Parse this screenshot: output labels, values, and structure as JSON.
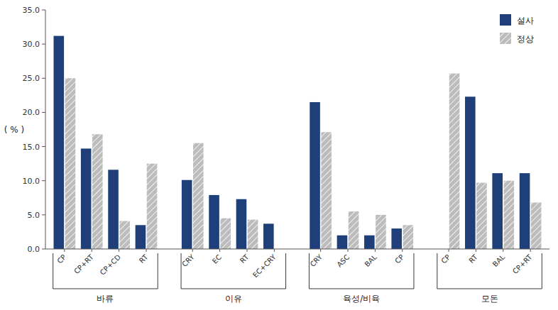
{
  "chart_data": {
    "type": "bar",
    "y_label": "( % )",
    "groups": [
      {
        "label": "바류",
        "categories": [
          "CP",
          "CP+RT",
          "CP+CD",
          "RT"
        ]
      },
      {
        "label": "이유",
        "categories": [
          "CRY",
          "EC",
          "RT",
          "EC+CRY"
        ]
      },
      {
        "label": "육성/비육",
        "categories": [
          "CRY",
          "ASC",
          "BAL",
          "CP"
        ]
      },
      {
        "label": "모돈",
        "categories": [
          "CP",
          "RT",
          "BAL",
          "CP+RT"
        ]
      }
    ],
    "series": [
      {
        "name": "설사",
        "color": "#1F3F7A",
        "values": [
          31.2,
          14.7,
          11.6,
          3.5,
          10.1,
          7.9,
          7.3,
          3.7,
          21.5,
          2.0,
          2.0,
          3.0,
          0.0,
          22.3,
          11.1,
          11.1
        ]
      },
      {
        "name": "정상",
        "color": "#BCBCBC",
        "values": [
          25.0,
          16.8,
          4.1,
          12.5,
          15.5,
          4.5,
          4.3,
          0.0,
          17.1,
          5.5,
          5.0,
          3.5,
          25.7,
          9.7,
          10.0,
          6.8
        ]
      }
    ],
    "ylim": [
      0.0,
      35.0
    ],
    "yticks": [
      {
        "value": 0.0,
        "label": "0.0"
      },
      {
        "value": 5.0,
        "label": "5.0"
      },
      {
        "value": 10.0,
        "label": "10.0"
      },
      {
        "value": 15.0,
        "label": "15.0"
      },
      {
        "value": 20.0,
        "label": "20.0"
      },
      {
        "value": 25.0,
        "label": "25.0"
      },
      {
        "value": 30.0,
        "label": "30.0"
      },
      {
        "value": 35.0,
        "label": "35.0"
      }
    ],
    "grid": false,
    "legend": "upper right"
  }
}
